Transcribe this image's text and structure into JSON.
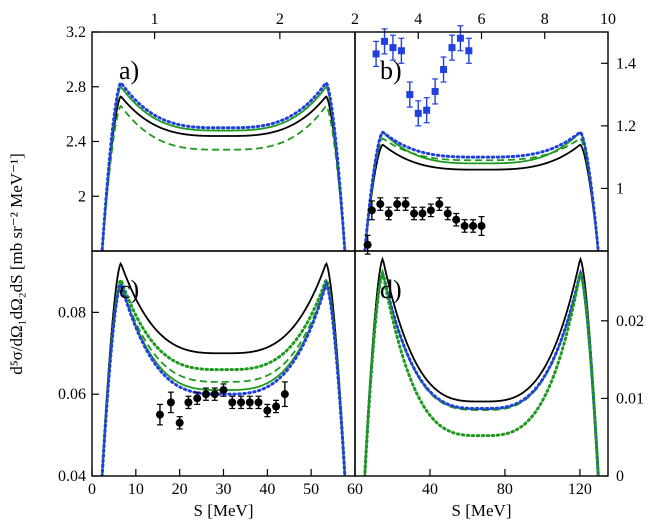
{
  "figure": {
    "ylabel": "d⁵σ/dΩ₁dΩ₂dS [mb sr⁻² MeV⁻¹]"
  },
  "chart_data": [
    {
      "id": "a",
      "type": "line",
      "panel_label": "a)",
      "xlabel": "",
      "xlim": [
        0,
        60
      ],
      "ylim": [
        1.6,
        3.2
      ],
      "yticks": [
        "2",
        "2.4",
        "2.8",
        "3.2"
      ],
      "top_axis": {
        "xlim": [
          0.5,
          2.6
        ],
        "ticks": [
          "1",
          "2"
        ]
      },
      "series": [
        {
          "name": "solid black",
          "color": "#000000",
          "style": "solid",
          "shape": {
            "edge": 1.6,
            "peak": 2.73,
            "mid": 2.44,
            "center": 30
          }
        },
        {
          "name": "dashed green",
          "color": "#1e9a1e",
          "style": "dashed",
          "shape": {
            "edge": 1.6,
            "peak": 2.66,
            "mid": 2.34,
            "center": 30
          }
        },
        {
          "name": "solid green",
          "color": "#1e9a1e",
          "style": "solid",
          "shape": {
            "edge": 1.6,
            "peak": 2.8,
            "mid": 2.48,
            "center": 30
          }
        },
        {
          "name": "dotted blue",
          "color": "#2040e0",
          "style": "dotted",
          "shape": {
            "edge": 1.6,
            "peak": 2.83,
            "mid": 2.5,
            "center": 30
          }
        }
      ]
    },
    {
      "id": "b",
      "type": "line",
      "panel_label": "b)",
      "xlabel": "",
      "xlim": [
        0,
        60
      ],
      "ylim": [
        0.8,
        1.5
      ],
      "yticks": [
        "1",
        "1.2",
        "1.4"
      ],
      "top_axis": {
        "xlim": [
          2,
          10
        ],
        "ticks": [
          "2",
          "4",
          "6",
          "8",
          "10"
        ]
      },
      "series": [
        {
          "name": "solid black",
          "color": "#000000",
          "style": "solid",
          "shape": {
            "edge": 0.8,
            "peak": 1.14,
            "mid": 1.06,
            "center": 30
          }
        },
        {
          "name": "dashed green",
          "color": "#1e9a1e",
          "style": "dashed",
          "shape": {
            "edge": 0.8,
            "peak": 1.16,
            "mid": 1.09,
            "center": 30
          }
        },
        {
          "name": "solid green",
          "color": "#1e9a1e",
          "style": "solid",
          "shape": {
            "edge": 0.8,
            "peak": 1.18,
            "mid": 1.08,
            "center": 30
          }
        },
        {
          "name": "dotted blue",
          "color": "#2040e0",
          "style": "dotted",
          "shape": {
            "edge": 0.8,
            "peak": 1.18,
            "mid": 1.1,
            "center": 30
          }
        }
      ],
      "points": [
        {
          "name": "black circles",
          "marker": "circle",
          "color": "#000000",
          "x": [
            3,
            4,
            6,
            8,
            10,
            12,
            14,
            16,
            18,
            20,
            22,
            24,
            26,
            28,
            30
          ],
          "y": [
            0.82,
            0.93,
            0.95,
            0.92,
            0.95,
            0.95,
            0.92,
            0.92,
            0.93,
            0.95,
            0.92,
            0.9,
            0.88,
            0.88,
            0.88
          ],
          "err": [
            0.03,
            0.03,
            0.02,
            0.02,
            0.02,
            0.02,
            0.02,
            0.02,
            0.02,
            0.02,
            0.02,
            0.02,
            0.02,
            0.02,
            0.03
          ]
        },
        {
          "name": "blue squares",
          "marker": "square",
          "color": "#2040e0",
          "x": [
            5,
            7,
            9,
            11,
            13,
            15,
            17,
            19,
            21,
            23,
            25,
            27
          ],
          "y": [
            1.43,
            1.47,
            1.45,
            1.44,
            1.3,
            1.24,
            1.25,
            1.31,
            1.38,
            1.45,
            1.48,
            1.44
          ],
          "err": [
            0.04,
            0.04,
            0.04,
            0.04,
            0.04,
            0.04,
            0.04,
            0.04,
            0.04,
            0.04,
            0.04,
            0.04
          ]
        }
      ]
    },
    {
      "id": "c",
      "type": "line",
      "panel_label": "c)",
      "xlabel": "S [MeV]",
      "xlim": [
        0,
        60
      ],
      "xticks": [
        "0",
        "10",
        "20",
        "30",
        "40",
        "50",
        "60"
      ],
      "ylim": [
        0.04,
        0.095
      ],
      "yticks": [
        "0.04",
        "0.06",
        "0.08"
      ],
      "series": [
        {
          "name": "solid black",
          "color": "#000000",
          "style": "solid",
          "shape": {
            "edge": 0.04,
            "peak": 0.092,
            "mid": 0.07,
            "center": 31
          }
        },
        {
          "name": "dotted green",
          "color": "#1e9a1e",
          "style": "dotted",
          "shape": {
            "edge": 0.04,
            "peak": 0.088,
            "mid": 0.066,
            "center": 31
          }
        },
        {
          "name": "dashed green",
          "color": "#1e9a1e",
          "style": "dashed",
          "shape": {
            "edge": 0.04,
            "peak": 0.087,
            "mid": 0.063,
            "center": 31
          }
        },
        {
          "name": "solid green",
          "color": "#1e9a1e",
          "style": "solid",
          "shape": {
            "edge": 0.04,
            "peak": 0.087,
            "mid": 0.061,
            "center": 31
          }
        },
        {
          "name": "dotted blue",
          "color": "#2040e0",
          "style": "dotted",
          "shape": {
            "edge": 0.04,
            "peak": 0.087,
            "mid": 0.06,
            "center": 31
          }
        }
      ],
      "points": [
        {
          "name": "black circles",
          "marker": "circle",
          "color": "#000000",
          "x": [
            15.5,
            18,
            20,
            22,
            24,
            26,
            28,
            30,
            32,
            34,
            36,
            38,
            40,
            42,
            44
          ],
          "y": [
            0.055,
            0.058,
            0.053,
            0.058,
            0.059,
            0.06,
            0.06,
            0.061,
            0.058,
            0.058,
            0.058,
            0.058,
            0.056,
            0.057,
            0.06
          ],
          "err": [
            0.0025,
            0.0025,
            0.0015,
            0.0015,
            0.0015,
            0.0015,
            0.0015,
            0.0015,
            0.0015,
            0.0015,
            0.0015,
            0.0015,
            0.0015,
            0.0015,
            0.003
          ]
        }
      ]
    },
    {
      "id": "d",
      "type": "line",
      "panel_label": "d)",
      "xlabel": "S [MeV]",
      "xlim": [
        0,
        135
      ],
      "xticks": [
        "40",
        "80",
        "120"
      ],
      "ylim": [
        0.0,
        0.029
      ],
      "yticks": [
        "0",
        "0.01",
        "0.02"
      ],
      "series": [
        {
          "name": "solid black",
          "color": "#000000",
          "style": "solid",
          "shape": {
            "edge": 0.0,
            "peak": 0.028,
            "mid": 0.0096,
            "center": 66
          }
        },
        {
          "name": "solid green",
          "color": "#1e9a1e",
          "style": "solid",
          "shape": {
            "edge": 0.0,
            "peak": 0.0262,
            "mid": 0.0086,
            "center": 66
          }
        },
        {
          "name": "dashed green",
          "color": "#1e9a1e",
          "style": "dashed",
          "shape": {
            "edge": 0.0,
            "peak": 0.0262,
            "mid": 0.0085,
            "center": 66
          }
        },
        {
          "name": "dotted blue",
          "color": "#2040e0",
          "style": "dotted",
          "shape": {
            "edge": 0.0,
            "peak": 0.0262,
            "mid": 0.0087,
            "center": 66
          }
        },
        {
          "name": "dotted green",
          "color": "#1e9a1e",
          "style": "dotted",
          "shape": {
            "edge": 0.0,
            "peak": 0.0262,
            "mid": 0.0052,
            "center": 66
          }
        }
      ]
    }
  ]
}
